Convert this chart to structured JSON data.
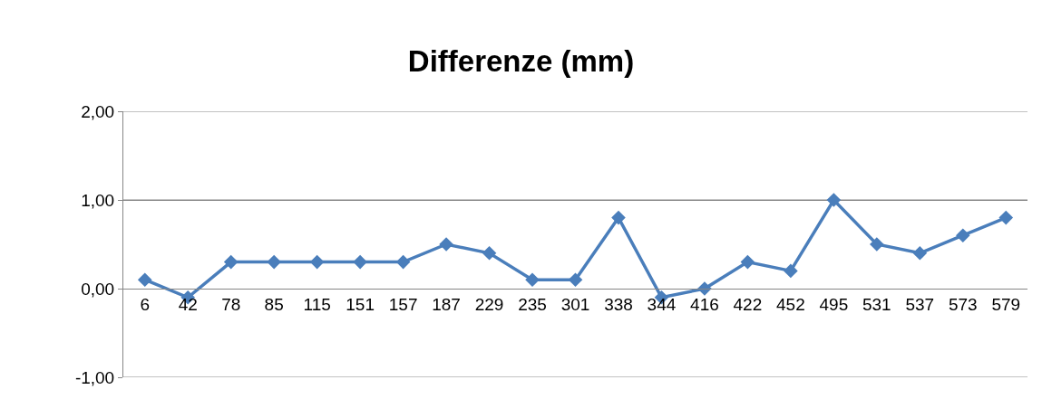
{
  "chart_data": {
    "type": "line",
    "title": "Differenze (mm)",
    "categories": [
      "6",
      "42",
      "78",
      "85",
      "115",
      "151",
      "157",
      "187",
      "229",
      "235",
      "301",
      "338",
      "344",
      "416",
      "422",
      "452",
      "495",
      "531",
      "537",
      "573",
      "579"
    ],
    "series": [
      {
        "color": "#4a7ebb",
        "values": [
          0.1,
          -0.1,
          0.3,
          0.3,
          0.3,
          0.3,
          0.3,
          0.5,
          0.4,
          0.1,
          0.1,
          0.8,
          -0.1,
          0.0,
          0.3,
          0.2,
          1.0,
          0.5,
          0.4,
          0.6,
          0.8
        ]
      }
    ],
    "ylim": [
      -1,
      2
    ],
    "yticks": [
      {
        "value": -1,
        "label": "-1,00"
      },
      {
        "value": 0,
        "label": "0,00"
      },
      {
        "value": 1,
        "label": "1,00"
      },
      {
        "value": 2,
        "label": "2,00"
      }
    ],
    "grid": "y",
    "marker": "diamond",
    "line_style": "solid"
  }
}
